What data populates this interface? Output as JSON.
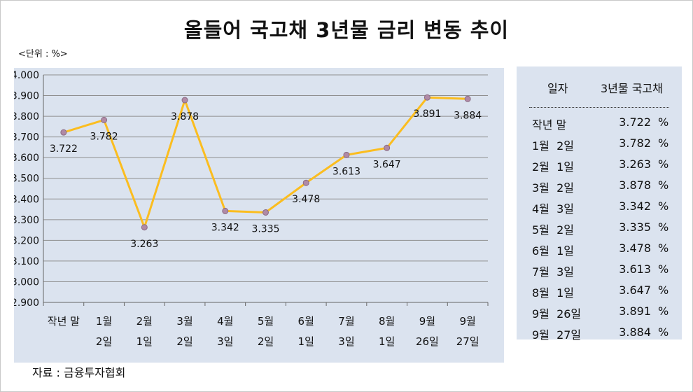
{
  "title": "올들어 국고채 3년물 금리 변동 추이",
  "unit_label": "<단위 : %>",
  "source": "자료 : 금융투자협회",
  "table": {
    "headers": [
      "일자",
      "3년물 국고채"
    ],
    "unit_symbol": "%",
    "rows": [
      {
        "date": "작년 말",
        "value": "3.722"
      },
      {
        "date": "1월  2일",
        "value": "3.782"
      },
      {
        "date": "2월  1일",
        "value": "3.263"
      },
      {
        "date": "3월  2일",
        "value": "3.878"
      },
      {
        "date": "4월  3일",
        "value": "3.342"
      },
      {
        "date": "5월  2일",
        "value": "3.335"
      },
      {
        "date": "6월  1일",
        "value": "3.478"
      },
      {
        "date": "7월  3일",
        "value": "3.613"
      },
      {
        "date": "8월  1일",
        "value": "3.647"
      },
      {
        "date": "9월  26일",
        "value": "3.891"
      },
      {
        "date": "9월  27일",
        "value": "3.884"
      }
    ]
  },
  "chart_data": {
    "type": "line",
    "title": "올들어 국고채 3년물 금리 변동 추이",
    "xlabel": "",
    "ylabel": "",
    "categories": [
      [
        "작년 말",
        ""
      ],
      [
        "1월",
        "2일"
      ],
      [
        "2월",
        "1일"
      ],
      [
        "3월",
        "2일"
      ],
      [
        "4월",
        "3일"
      ],
      [
        "5월",
        "2일"
      ],
      [
        "6월",
        "1일"
      ],
      [
        "7월",
        "3일"
      ],
      [
        "8월",
        "1일"
      ],
      [
        "9월",
        "26일"
      ],
      [
        "9월",
        "27일"
      ]
    ],
    "series": [
      {
        "values": [
          3.722,
          3.782,
          3.263,
          3.878,
          3.342,
          3.335,
          3.478,
          3.613,
          3.647,
          3.891,
          3.884
        ]
      }
    ],
    "data_labels": [
      "3.722",
      "3.782",
      "3.263",
      "3.878",
      "3.342",
      "3.335",
      "3.478",
      "3.613",
      "3.647",
      "3.891",
      "3.884"
    ],
    "ylim": [
      2.9,
      4.0
    ],
    "yticks": [
      "2.900",
      "3.000",
      "3.100",
      "3.200",
      "3.300",
      "3.400",
      "3.500",
      "3.600",
      "3.700",
      "3.800",
      "3.900",
      "4.000"
    ],
    "grid": true,
    "legend": "none",
    "colors": {
      "line": "#fbbd1f",
      "marker_fill": "#b08aa6",
      "marker_stroke": "#8a6a82",
      "grid": "#8f8f8f",
      "plot_background": "#dbe3ef"
    }
  }
}
